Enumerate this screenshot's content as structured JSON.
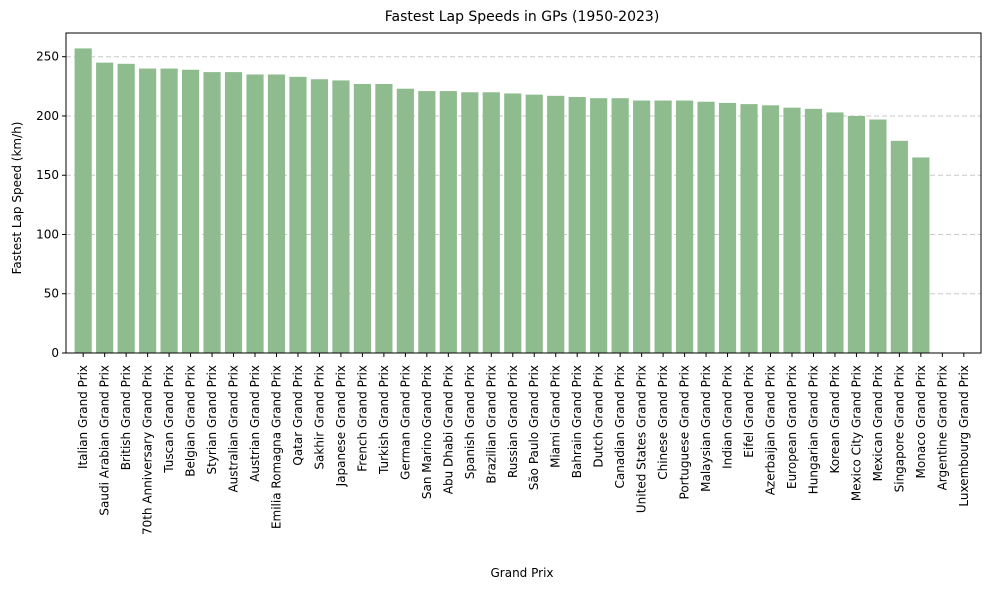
{
  "chart_data": {
    "type": "bar",
    "title": "Fastest Lap Speeds in GPs (1950-2023)",
    "xlabel": "Grand Prix",
    "ylabel": "Fastest Lap Speed (km/h)",
    "ylim": [
      0,
      270
    ],
    "yticks": [
      0,
      50,
      100,
      150,
      200,
      250
    ],
    "grid": "y-dashed",
    "bar_color": "#8fbc8f",
    "categories": [
      "Italian Grand Prix",
      "Saudi Arabian Grand Prix",
      "British Grand Prix",
      "70th Anniversary Grand Prix",
      "Tuscan Grand Prix",
      "Belgian Grand Prix",
      "Styrian Grand Prix",
      "Australian Grand Prix",
      "Austrian Grand Prix",
      "Emilia Romagna Grand Prix",
      "Qatar Grand Prix",
      "Sakhir Grand Prix",
      "Japanese Grand Prix",
      "French Grand Prix",
      "Turkish Grand Prix",
      "German Grand Prix",
      "San Marino Grand Prix",
      "Abu Dhabi Grand Prix",
      "Spanish Grand Prix",
      "Brazilian Grand Prix",
      "Russian Grand Prix",
      "São Paulo Grand Prix",
      "Miami Grand Prix",
      "Bahrain Grand Prix",
      "Dutch Grand Prix",
      "Canadian Grand Prix",
      "United States Grand Prix",
      "Chinese Grand Prix",
      "Portuguese Grand Prix",
      "Malaysian Grand Prix",
      "Indian Grand Prix",
      "Eifel Grand Prix",
      "Azerbaijan Grand Prix",
      "European Grand Prix",
      "Hungarian Grand Prix",
      "Korean Grand Prix",
      "Mexico City Grand Prix",
      "Mexican Grand Prix",
      "Singapore Grand Prix",
      "Monaco Grand Prix",
      "Argentine Grand Prix",
      "Luxembourg Grand Prix"
    ],
    "values": [
      257,
      245,
      244,
      240,
      240,
      239,
      237,
      237,
      235,
      235,
      233,
      231,
      230,
      227,
      227,
      223,
      221,
      221,
      220,
      220,
      219,
      218,
      217,
      216,
      215,
      215,
      213,
      213,
      213,
      212,
      211,
      210,
      209,
      207,
      206,
      203,
      200,
      197,
      179,
      165,
      0,
      0
    ]
  }
}
